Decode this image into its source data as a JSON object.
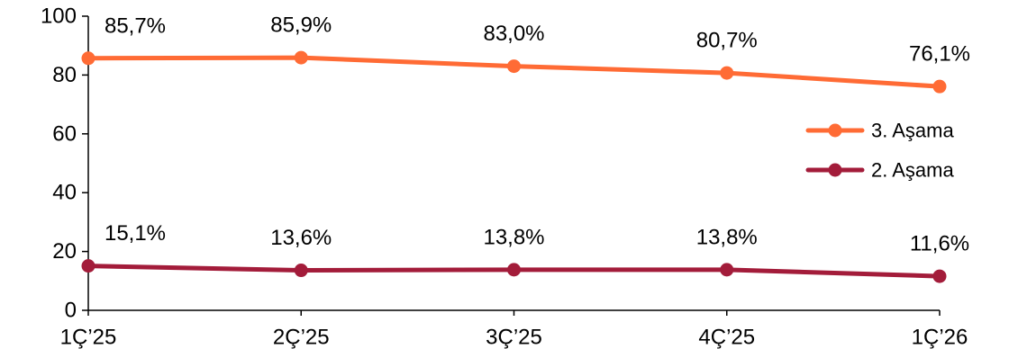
{
  "chart_data": {
    "type": "line",
    "categories": [
      "1Ç’25",
      "2Ç’25",
      "3Ç’25",
      "4Ç’25",
      "1Ç’26"
    ],
    "ylim": [
      0,
      100
    ],
    "yticks": [
      0,
      20,
      40,
      60,
      80,
      100
    ],
    "ytick_labels": [
      "0",
      "20",
      "40",
      "60",
      "80",
      "100"
    ],
    "grid": false,
    "legend_position": "right",
    "series": [
      {
        "name": "3. Aşama",
        "color": "#FF6B35",
        "values": [
          85.7,
          85.9,
          83.0,
          80.7,
          76.1
        ],
        "labels": [
          "85,7%",
          "85,9%",
          "83,0%",
          "80,7%",
          "76,1%"
        ]
      },
      {
        "name": "2. Aşama",
        "color": "#A31C3A",
        "values": [
          15.1,
          13.6,
          13.8,
          13.8,
          11.6
        ],
        "labels": [
          "15,1%",
          "13,6%",
          "13,8%",
          "13,8%",
          "11,6%"
        ]
      }
    ]
  }
}
